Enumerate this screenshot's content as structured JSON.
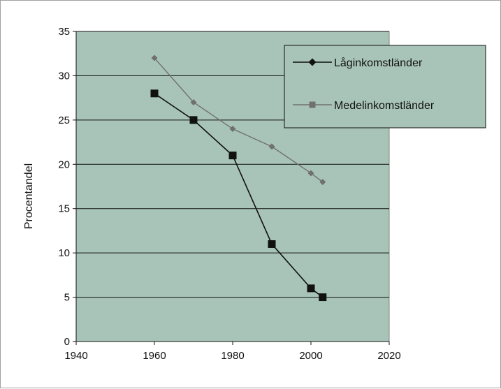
{
  "chart_data": {
    "type": "line",
    "ylabel": "Procentandel",
    "xlabel": "",
    "xlim": [
      1940,
      2020
    ],
    "ylim": [
      0,
      35
    ],
    "x_ticks": [
      1940,
      1960,
      1980,
      2000,
      2020
    ],
    "y_ticks": [
      0,
      5,
      10,
      15,
      20,
      25,
      30,
      35
    ],
    "grid": "horizontal",
    "legend_position": "top-right",
    "plot_background": "#a8c4b8",
    "series": [
      {
        "name": "Låginkomstländer",
        "color": "#111111",
        "marker": "square",
        "legend_marker": "diamond",
        "x": [
          1960,
          1970,
          1980,
          1990,
          2000,
          2003
        ],
        "values": [
          28,
          25,
          21,
          11,
          6,
          5
        ]
      },
      {
        "name": "Medelinkomstländer",
        "color": "#707070",
        "marker": "diamond",
        "legend_marker": "square",
        "x": [
          1960,
          1970,
          1980,
          1990,
          2000,
          2003
        ],
        "values": [
          32,
          27,
          24,
          22,
          19,
          18
        ]
      }
    ]
  }
}
